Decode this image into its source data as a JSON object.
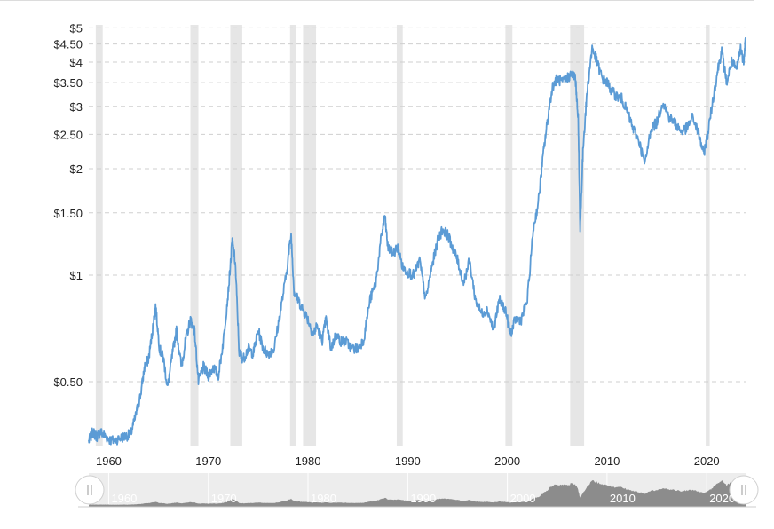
{
  "chart_data": {
    "type": "line",
    "title": "",
    "xlabel": "",
    "ylabel": "",
    "y_scale": "log",
    "ylim": [
      0.33,
      5.4
    ],
    "xlim": [
      1958.0,
      2023.9
    ],
    "y_ticks": [
      {
        "value": 5,
        "label": "$5"
      },
      {
        "value": 4.5,
        "label": "$4.50"
      },
      {
        "value": 4,
        "label": "$4"
      },
      {
        "value": 3.5,
        "label": "$3.50"
      },
      {
        "value": 3,
        "label": "$3"
      },
      {
        "value": 2.5,
        "label": "$2.50"
      },
      {
        "value": 2,
        "label": "$2"
      },
      {
        "value": 1.5,
        "label": "$1.50"
      },
      {
        "value": 1,
        "label": "$1"
      },
      {
        "value": 0.5,
        "label": "$0.50"
      }
    ],
    "x_ticks": [
      "1960",
      "1970",
      "1980",
      "1990",
      "2000",
      "2010",
      "2020"
    ],
    "grid": "horizontal dashed",
    "recessions": [
      [
        1958.7,
        1959.4
      ],
      [
        1968.2,
        1969.0
      ],
      [
        1972.2,
        1973.4
      ],
      [
        1978.2,
        1978.8
      ],
      [
        1979.5,
        1980.8
      ],
      [
        1988.9,
        1989.5
      ],
      [
        1999.8,
        2000.5
      ],
      [
        2006.3,
        2007.7
      ],
      [
        2019.9,
        2020.3
      ]
    ],
    "series": [
      {
        "color": "#5b9bd5",
        "x": [
          1958.0,
          1958.4,
          1958.8,
          1959.2,
          1959.7,
          1960.3,
          1961.0,
          1961.6,
          1962.2,
          1962.7,
          1963.2,
          1963.6,
          1964.0,
          1964.4,
          1964.7,
          1965.1,
          1965.5,
          1965.9,
          1966.4,
          1966.8,
          1967.3,
          1967.7,
          1968.2,
          1968.6,
          1969.0,
          1969.5,
          1970.0,
          1970.5,
          1971.0,
          1971.5,
          1972.0,
          1972.4,
          1972.7,
          1973.1,
          1973.5,
          1974.0,
          1974.5,
          1975.0,
          1975.5,
          1976.0,
          1976.6,
          1977.2,
          1977.8,
          1978.3,
          1978.6,
          1979.0,
          1979.5,
          1980.0,
          1980.5,
          1980.9,
          1981.4,
          1981.8,
          1982.3,
          1982.8,
          1983.3,
          1983.8,
          1984.4,
          1985.0,
          1985.6,
          1986.2,
          1986.8,
          1987.3,
          1987.7,
          1988.0,
          1988.5,
          1989.0,
          1989.5,
          1990.0,
          1990.6,
          1991.2,
          1991.8,
          1992.4,
          1993.0,
          1993.5,
          1994.0,
          1994.5,
          1995.0,
          1995.6,
          1996.2,
          1996.8,
          1997.4,
          1998.0,
          1998.6,
          1999.2,
          1999.8,
          2000.3,
          2000.8,
          2001.4,
          2002.0,
          2002.6,
          2003.1,
          2003.6,
          2004.0,
          2004.5,
          2005.0,
          2005.5,
          2006.0,
          2006.4,
          2006.8,
          2007.1,
          2007.3,
          2007.6,
          2008.0,
          2008.5,
          2009.0,
          2009.5,
          2010.0,
          2010.5,
          2011.0,
          2011.5,
          2012.0,
          2012.6,
          2013.2,
          2013.8,
          2014.4,
          2015.0,
          2015.6,
          2016.2,
          2016.8,
          2017.4,
          2018.0,
          2018.6,
          2019.2,
          2019.7,
          2020.1,
          2020.6,
          2021.1,
          2021.5,
          2022.0,
          2022.5,
          2023.0,
          2023.4,
          2023.7,
          2023.9
        ],
        "y": [
          0.34,
          0.36,
          0.35,
          0.36,
          0.35,
          0.34,
          0.345,
          0.35,
          0.355,
          0.4,
          0.46,
          0.55,
          0.58,
          0.7,
          0.82,
          0.62,
          0.58,
          0.48,
          0.6,
          0.7,
          0.55,
          0.65,
          0.75,
          0.7,
          0.5,
          0.55,
          0.52,
          0.55,
          0.52,
          0.65,
          0.9,
          1.25,
          1.08,
          0.6,
          0.58,
          0.62,
          0.6,
          0.7,
          0.62,
          0.6,
          0.62,
          0.78,
          1.0,
          1.3,
          0.9,
          0.85,
          0.8,
          0.75,
          0.68,
          0.72,
          0.65,
          0.75,
          0.62,
          0.68,
          0.65,
          0.65,
          0.62,
          0.62,
          0.66,
          0.85,
          0.95,
          1.25,
          1.48,
          1.2,
          1.15,
          1.2,
          1.05,
          1.02,
          1.0,
          1.1,
          0.85,
          1.05,
          1.25,
          1.35,
          1.3,
          1.2,
          1.1,
          0.95,
          1.1,
          0.85,
          0.78,
          0.8,
          0.7,
          0.85,
          0.8,
          0.68,
          0.75,
          0.75,
          0.85,
          1.35,
          1.6,
          2.2,
          2.7,
          3.4,
          3.6,
          3.5,
          3.6,
          3.7,
          3.65,
          2.8,
          1.35,
          2.3,
          3.3,
          4.4,
          4.0,
          3.6,
          3.5,
          3.3,
          3.2,
          3.15,
          2.9,
          2.6,
          2.4,
          2.05,
          2.6,
          2.7,
          3.1,
          2.8,
          2.7,
          2.55,
          2.6,
          2.8,
          2.5,
          2.2,
          2.5,
          3.1,
          3.8,
          4.3,
          3.5,
          4.0,
          3.8,
          4.4,
          4.0,
          4.7
        ]
      }
    ]
  },
  "navigator": {
    "labels": [
      "1960",
      "1970",
      "1980",
      "1990",
      "2000",
      "2010",
      "2020"
    ]
  }
}
